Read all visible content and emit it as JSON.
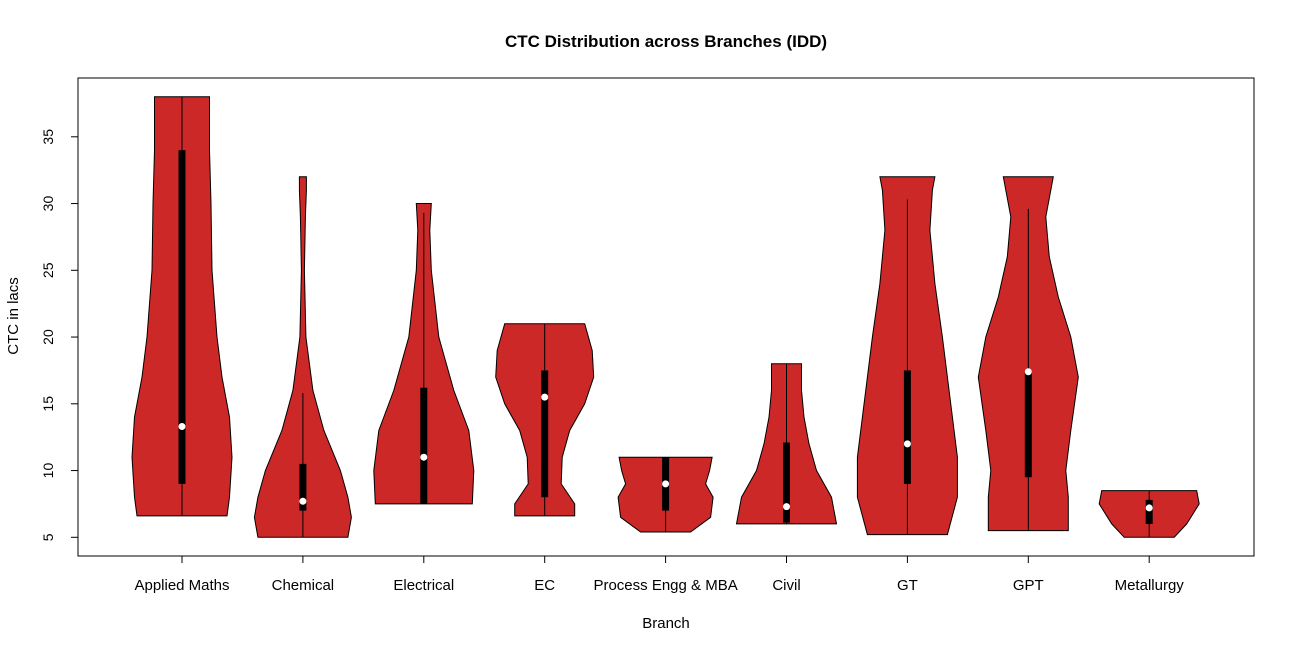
{
  "chart_data": {
    "type": "violin",
    "title": "CTC Distribution across Branches (IDD)",
    "xlabel": "Branch",
    "ylabel": "CTC in lacs",
    "ylim": [
      3.6,
      39.4
    ],
    "yticks": [
      5,
      10,
      15,
      20,
      25,
      30,
      35
    ],
    "grid": false,
    "fill_color": "#cd2828",
    "box_color": "#000000",
    "median_color": "#ffffff",
    "categories": [
      "Applied Maths",
      "Chemical",
      "Electrical",
      "EC",
      "Process Engg & MBA",
      "Civil",
      "GT",
      "GPT",
      "Metallurgy"
    ],
    "series": [
      {
        "min": 6.6,
        "max": 38,
        "q1": 9,
        "median": 13.3,
        "q3": 34,
        "whisker_low": 6.6,
        "whisker_high": 38,
        "density": [
          [
            6.6,
            0.9
          ],
          [
            8,
            0.95
          ],
          [
            11,
            1.0
          ],
          [
            14,
            0.95
          ],
          [
            17,
            0.8
          ],
          [
            20,
            0.7
          ],
          [
            25,
            0.6
          ],
          [
            30,
            0.58
          ],
          [
            34,
            0.55
          ],
          [
            38,
            0.55
          ]
        ]
      },
      {
        "min": 5,
        "max": 32,
        "q1": 7,
        "median": 7.7,
        "q3": 10.5,
        "whisker_low": 5,
        "whisker_high": 15.8,
        "density": [
          [
            5,
            0.9
          ],
          [
            6.5,
            0.97
          ],
          [
            8,
            0.9
          ],
          [
            10,
            0.75
          ],
          [
            13,
            0.42
          ],
          [
            16,
            0.2
          ],
          [
            20,
            0.06
          ],
          [
            25,
            0.03
          ],
          [
            29,
            0.05
          ],
          [
            31,
            0.07
          ],
          [
            32,
            0.07
          ]
        ]
      },
      {
        "min": 7.5,
        "max": 30,
        "q1": 7.5,
        "median": 11,
        "q3": 16.2,
        "whisker_low": 7.5,
        "whisker_high": 29.3,
        "density": [
          [
            7.5,
            0.97
          ],
          [
            10,
            1.0
          ],
          [
            13,
            0.9
          ],
          [
            16,
            0.6
          ],
          [
            20,
            0.3
          ],
          [
            25,
            0.15
          ],
          [
            28,
            0.12
          ],
          [
            30,
            0.15
          ]
        ]
      },
      {
        "min": 6.6,
        "max": 21,
        "q1": 8,
        "median": 15.5,
        "q3": 17.5,
        "whisker_low": 6.6,
        "whisker_high": 21,
        "density": [
          [
            6.6,
            0.6
          ],
          [
            7.5,
            0.6
          ],
          [
            9,
            0.33
          ],
          [
            11,
            0.35
          ],
          [
            13,
            0.5
          ],
          [
            15,
            0.8
          ],
          [
            17,
            0.98
          ],
          [
            19,
            0.95
          ],
          [
            21,
            0.8
          ]
        ]
      },
      {
        "min": 5.4,
        "max": 11,
        "q1": 7,
        "median": 9,
        "q3": 11,
        "whisker_low": 5.4,
        "whisker_high": 11,
        "density": [
          [
            5.4,
            0.5
          ],
          [
            6.5,
            0.9
          ],
          [
            8,
            0.95
          ],
          [
            9,
            0.8
          ],
          [
            10,
            0.88
          ],
          [
            11,
            0.93
          ]
        ]
      },
      {
        "min": 6,
        "max": 18,
        "q1": 6.1,
        "median": 7.3,
        "q3": 12.1,
        "whisker_low": 6,
        "whisker_high": 18,
        "density": [
          [
            6,
            1.0
          ],
          [
            8,
            0.9
          ],
          [
            10,
            0.6
          ],
          [
            12,
            0.45
          ],
          [
            14,
            0.35
          ],
          [
            16,
            0.3
          ],
          [
            18,
            0.3
          ]
        ]
      },
      {
        "min": 5.2,
        "max": 32,
        "q1": 9,
        "median": 12,
        "q3": 17.5,
        "whisker_low": 5.2,
        "whisker_high": 30.3,
        "density": [
          [
            5.2,
            0.8
          ],
          [
            8,
            1.0
          ],
          [
            11,
            1.0
          ],
          [
            14,
            0.9
          ],
          [
            17,
            0.8
          ],
          [
            20,
            0.7
          ],
          [
            24,
            0.55
          ],
          [
            28,
            0.45
          ],
          [
            31,
            0.5
          ],
          [
            32,
            0.55
          ]
        ]
      },
      {
        "min": 5.5,
        "max": 32,
        "q1": 9.5,
        "median": 17.4,
        "q3": 17.5,
        "whisker_low": 5.5,
        "whisker_high": 29.6,
        "density": [
          [
            5.5,
            0.8
          ],
          [
            8,
            0.8
          ],
          [
            10,
            0.75
          ],
          [
            13,
            0.85
          ],
          [
            17,
            1.0
          ],
          [
            20,
            0.85
          ],
          [
            23,
            0.6
          ],
          [
            26,
            0.42
          ],
          [
            29,
            0.35
          ],
          [
            32,
            0.5
          ]
        ]
      },
      {
        "min": 5,
        "max": 8.5,
        "q1": 6,
        "median": 7.2,
        "q3": 7.8,
        "whisker_low": 5,
        "whisker_high": 8.5,
        "density": [
          [
            5,
            0.5
          ],
          [
            6,
            0.75
          ],
          [
            7.5,
            1.0
          ],
          [
            8.5,
            0.95
          ]
        ]
      }
    ]
  }
}
